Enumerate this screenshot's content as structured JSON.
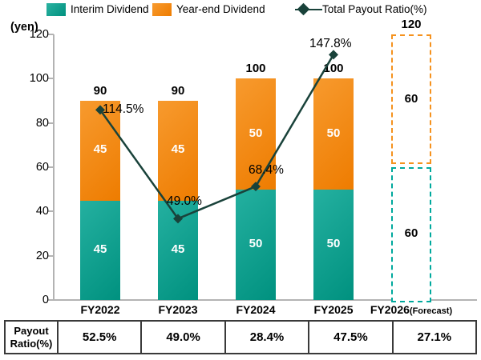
{
  "legend": {
    "items": [
      {
        "label": "Interim Dividend",
        "marker": "teal-square"
      },
      {
        "label": "Year-end Dividend",
        "marker": "orange-square"
      },
      {
        "label": "Total Payout Ratio(%)",
        "marker": "dark-diamond-line"
      }
    ]
  },
  "chart_data": {
    "type": "bar+line",
    "title": "",
    "ylabel": "(yen)",
    "ylim": [
      0,
      120
    ],
    "yticks": [
      0,
      20,
      40,
      60,
      80,
      100,
      120
    ],
    "grid": false,
    "categories": [
      "FY2022",
      "FY2023",
      "FY2024",
      "FY2025",
      "FY2026"
    ],
    "category_suffixes": [
      "",
      "",
      "",
      "",
      "(Forecast)"
    ],
    "forecast_index": 4,
    "series": [
      {
        "name": "Interim Dividend",
        "values": [
          45,
          45,
          50,
          50,
          60
        ]
      },
      {
        "name": "Year-end Dividend",
        "values": [
          45,
          45,
          50,
          50,
          60
        ]
      }
    ],
    "totals": [
      90,
      90,
      100,
      100,
      120
    ],
    "line_series": {
      "name": "Total Payout Ratio(%)",
      "values": [
        114.5,
        49.0,
        68.4,
        147.8
      ],
      "labels": [
        "114.5%",
        "49.0%",
        "68.4%",
        "147.8%"
      ]
    }
  },
  "table": {
    "header_line1": "Payout",
    "header_line2": "Ratio(%)",
    "values": [
      "52.5%",
      "49.0%",
      "28.4%",
      "47.5%",
      "27.1%"
    ]
  },
  "colors": {
    "interim": "#00A08E",
    "yearend": "#F28614",
    "line": "#19423A",
    "forecast_interim_border": "#00A99D",
    "forecast_yearend_border": "#F5921E",
    "axis": "#B3B3B3",
    "table_border": "#3A3A3A"
  }
}
